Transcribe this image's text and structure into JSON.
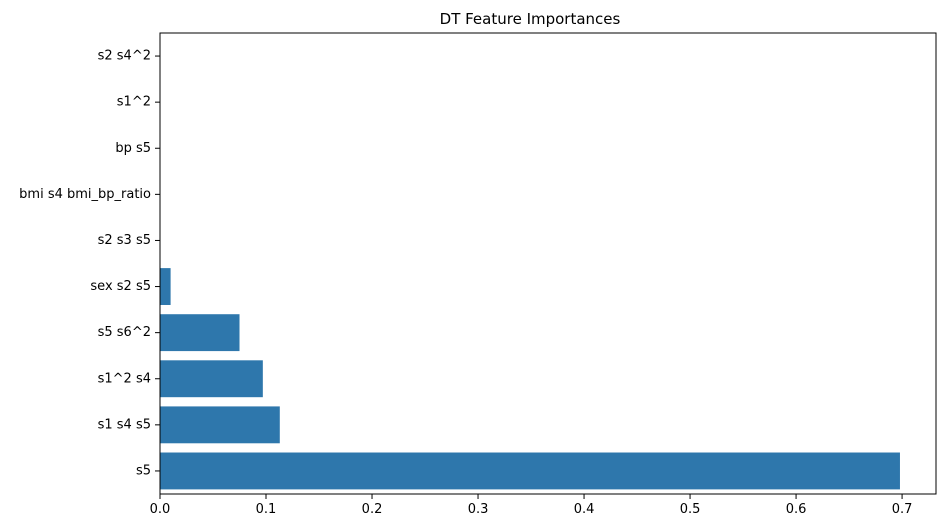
{
  "chart_data": {
    "type": "bar",
    "orientation": "horizontal",
    "title": "DT Feature Importances",
    "xlabel": "",
    "ylabel": "",
    "categories": [
      "s2 s4^2",
      "s1^2",
      "bp s5",
      "bmi s4 bmi_bp_ratio",
      "s2 s3 s5",
      "sex s2 s5",
      "s5 s6^2",
      "s1^2 s4",
      "s1 s4 s5",
      "s5"
    ],
    "values": [
      0,
      0,
      0,
      0,
      0,
      0.01,
      0.075,
      0.097,
      0.113,
      0.698
    ],
    "xlim": [
      0,
      0.732
    ],
    "xticks": [
      "0.0",
      "0.1",
      "0.2",
      "0.3",
      "0.4",
      "0.5",
      "0.6",
      "0.7"
    ],
    "bar_color": "#2e77ac",
    "grid": false,
    "legend": "none"
  }
}
